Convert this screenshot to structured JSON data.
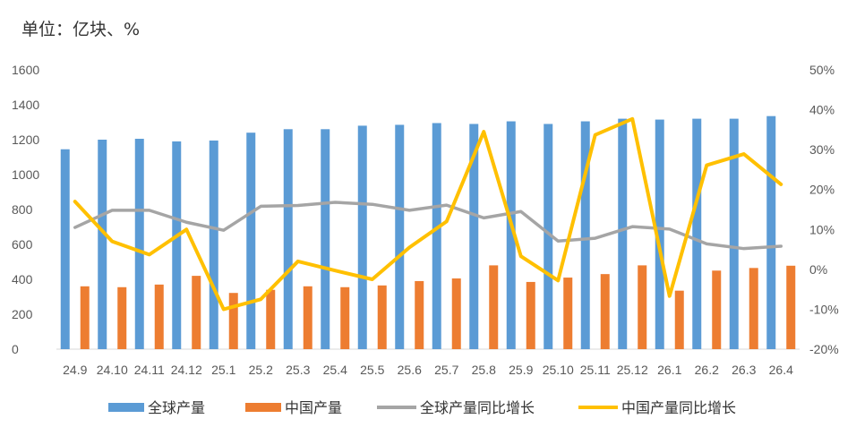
{
  "unit_label": "单位：亿块、%",
  "chart_data": {
    "type": "bar",
    "title": "",
    "categories": [
      "24.9",
      "24.10",
      "24.11",
      "24.12",
      "25.1",
      "25.2",
      "25.3",
      "25.4",
      "25.5",
      "25.6",
      "25.7",
      "25.8",
      "25.9",
      "25.10",
      "25.11",
      "25.12",
      "26.1",
      "26.2",
      "26.3",
      "26.4"
    ],
    "series": [
      {
        "name": "全球产量",
        "type": "bar",
        "axis": "left",
        "color": "#5b9bd5",
        "values": [
          1145,
          1200,
          1205,
          1190,
          1195,
          1240,
          1260,
          1260,
          1280,
          1285,
          1295,
          1290,
          1305,
          1290,
          1305,
          1320,
          1315,
          1320,
          1320,
          1335
        ]
      },
      {
        "name": "中国产量",
        "type": "bar",
        "axis": "left",
        "color": "#ed7d31",
        "values": [
          360,
          355,
          370,
          420,
          322,
          340,
          360,
          355,
          365,
          390,
          405,
          480,
          385,
          410,
          430,
          480,
          335,
          450,
          465,
          478
        ]
      },
      {
        "name": "全球产量同比增长",
        "type": "line",
        "axis": "right",
        "color": "#a5a5a5",
        "values": [
          10.5,
          14.8,
          14.8,
          11.8,
          9.8,
          15.8,
          16,
          16.8,
          16.3,
          14.8,
          16.1,
          12.9,
          14.5,
          7.1,
          7.8,
          10.7,
          10.1,
          6.4,
          5.2,
          5.8
        ]
      },
      {
        "name": "中国产量同比增长",
        "type": "line",
        "axis": "right",
        "color": "#ffc000",
        "values": [
          17,
          7,
          3.7,
          10,
          -10,
          -7.5,
          2,
          -0.3,
          -2.5,
          5.5,
          12,
          34.5,
          3.3,
          -2.8,
          33.7,
          37.7,
          -6.7,
          26.1,
          28.9,
          21.3
        ]
      }
    ],
    "y_left": {
      "min": 0,
      "max": 1600,
      "step": 200,
      "ticks": [
        "0",
        "200",
        "400",
        "600",
        "800",
        "1000",
        "1200",
        "1400",
        "1600"
      ]
    },
    "y_right": {
      "min": -20,
      "max": 50,
      "step": 10,
      "ticks": [
        "-20%",
        "-10%",
        "0%",
        "10%",
        "20%",
        "30%",
        "40%",
        "50%"
      ]
    },
    "grid": false,
    "legend_position": "bottom"
  }
}
